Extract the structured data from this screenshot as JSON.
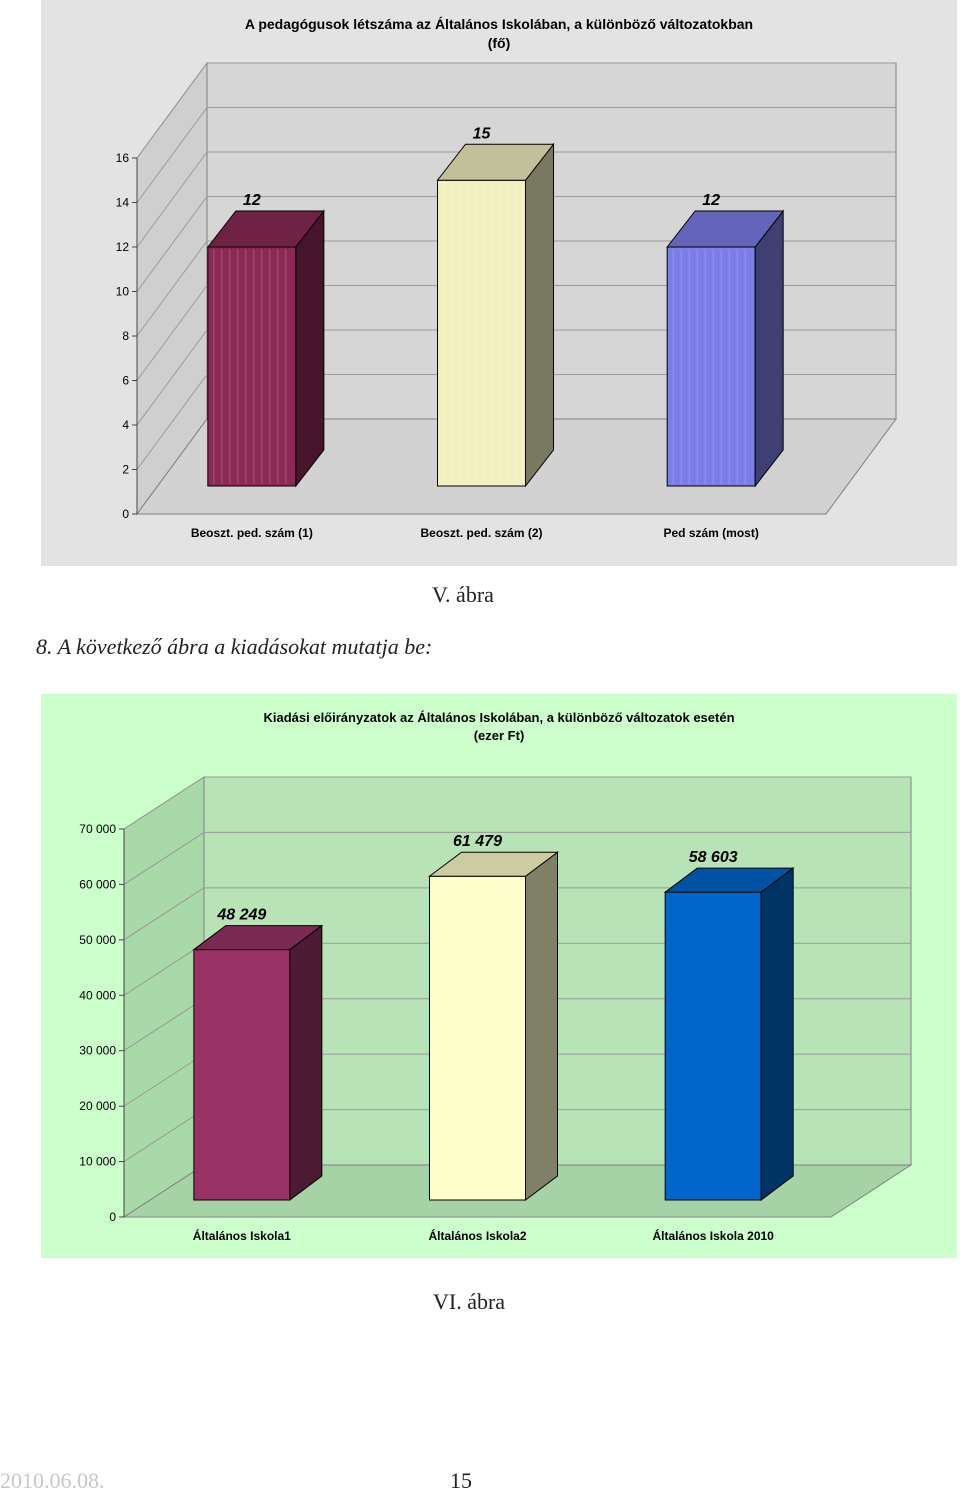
{
  "chart_data": [
    {
      "type": "bar",
      "title_lines": [
        "A pedagógusok létszáma az Általános Iskolában, a különböző változatokban",
        "(fő)"
      ],
      "categories": [
        "Beoszt. ped.   szám    (1)",
        "Beoszt. ped. szám (2)",
        "Ped szám (most)"
      ],
      "values": [
        12,
        15,
        12
      ],
      "data_labels": [
        "12",
        "15",
        "12"
      ],
      "ylim": [
        0,
        16
      ],
      "yticks": [
        0,
        2,
        4,
        6,
        8,
        10,
        12,
        14,
        16
      ],
      "ytick_labels": [
        "0",
        "2",
        "4",
        "6",
        "8",
        "10",
        "12",
        "14",
        "16"
      ],
      "colors": [
        "#8b2a55",
        "#f2f0c0",
        "#7d7de8"
      ],
      "grid": true,
      "style": "3d"
    },
    {
      "type": "bar",
      "title_lines": [
        "Kiadási előirányzatok az Általános Iskolában, a különböző változatok esetén",
        "(ezer Ft)"
      ],
      "categories": [
        "Általános Iskola1",
        "Általános Iskola2",
        "Általános Iskola 2010"
      ],
      "values": [
        48249,
        61479,
        58603
      ],
      "data_labels": [
        "48 249",
        "61 479",
        "58 603"
      ],
      "ylim": [
        0,
        70000
      ],
      "yticks": [
        0,
        10000,
        20000,
        30000,
        40000,
        50000,
        60000,
        70000
      ],
      "ytick_labels": [
        "0",
        "10 000",
        "20 000",
        "30 000",
        "40 000",
        "50 000",
        "60 000",
        "70 000"
      ],
      "colors": [
        "#993366",
        "#ffffcc",
        "#0066cc"
      ],
      "grid": true,
      "style": "3d"
    }
  ],
  "captions": {
    "fig5": "V. ábra",
    "heading": "8.  A következő ábra a kiadásokat mutatja be:",
    "fig6": "VI. ábra"
  },
  "footer": {
    "date": "2010.06.08.",
    "page": "15"
  }
}
